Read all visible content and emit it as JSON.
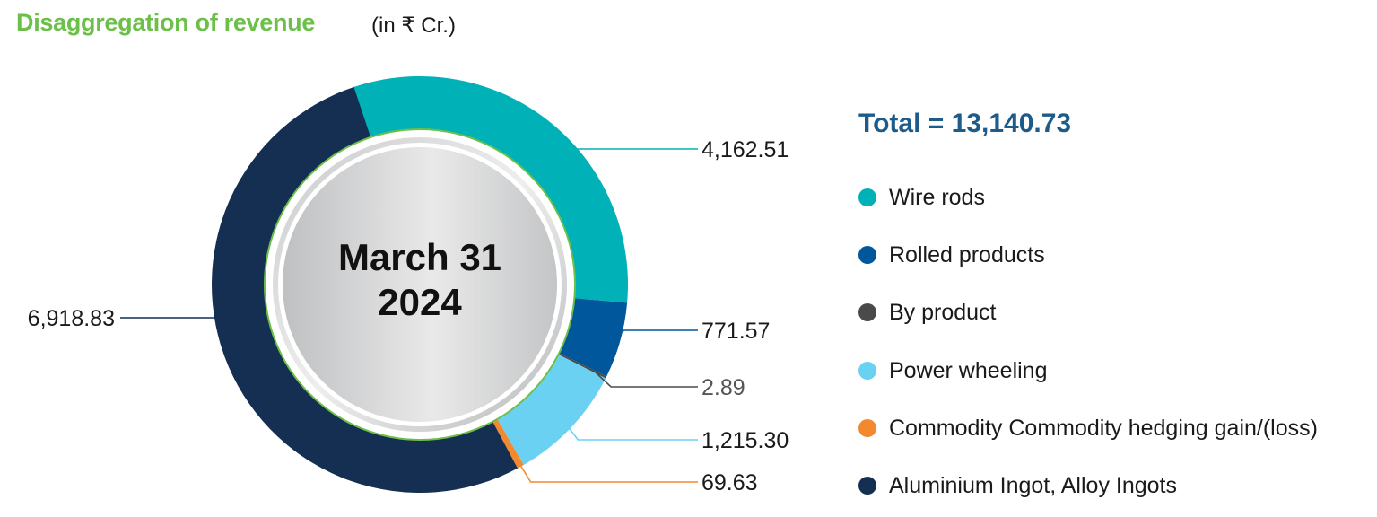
{
  "header": {
    "title": "Disaggregation of revenue",
    "unit": "(in ₹ Cr.)"
  },
  "center": {
    "line1": "March 31",
    "line2": "2024"
  },
  "total_label": "Total = 13,140.73",
  "colors": {
    "title": "#6cc04a",
    "total": "#1d5c8a",
    "ring_border": "#6cc04a"
  },
  "chart_data": {
    "type": "pie",
    "title": "Disaggregation of revenue",
    "subtitle": "(in ₹ Cr.)",
    "center_label": "March 31 2024",
    "total": 13140.73,
    "legend_position": "right",
    "series": [
      {
        "name": "Wire rods",
        "value": 4162.51,
        "label": "4,162.51",
        "color": "#00b2b7"
      },
      {
        "name": "Rolled products",
        "value": 771.57,
        "label": "771.57",
        "color": "#00579b"
      },
      {
        "name": "By product",
        "value": 2.89,
        "label": "2.89",
        "color": "#4a4a4a"
      },
      {
        "name": "Power wheeling",
        "value": 1215.3,
        "label": "1,215.30",
        "color": "#6ad1f3"
      },
      {
        "name": "Commodity Commodity hedging gain/(loss)",
        "value": 69.63,
        "label": "69.63",
        "color": "#f2892e"
      },
      {
        "name": "Aluminium Ingot, Alloy Ingots",
        "value": 6918.83,
        "label": "6,918.83",
        "color": "#152f52"
      }
    ]
  }
}
